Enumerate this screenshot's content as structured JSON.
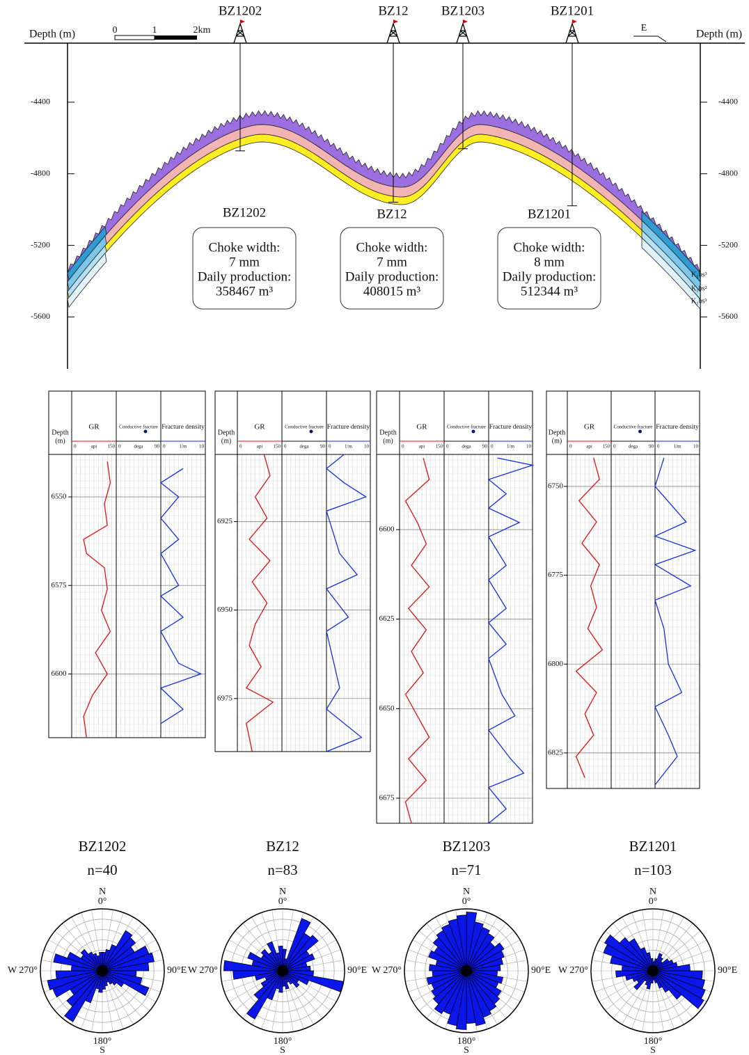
{
  "section": {
    "depth_label": "Depth (m)",
    "ylim": [
      -4070,
      -5890
    ],
    "yticks": [
      -4400,
      -4800,
      -5200,
      -5600
    ],
    "scale_bar": [
      "0",
      "1",
      "2km"
    ],
    "direction": "E",
    "wells": [
      {
        "name": "BZ1202",
        "bottom_depth": -4672
      },
      {
        "name": "BZ12",
        "bottom_depth": -4959
      },
      {
        "name": "BZ1203",
        "bottom_depth": -4660
      },
      {
        "name": "BZ1201",
        "bottom_depth": -4979
      }
    ],
    "boxes": [
      {
        "well": "BZ1202",
        "lines": [
          "Choke width:",
          "7 mm",
          "Daily production:",
          "358467 m³"
        ]
      },
      {
        "well": "BZ12",
        "lines": [
          "Choke width:",
          "7 mm",
          "Daily production:",
          "408015 m³"
        ]
      },
      {
        "well": "BZ1201",
        "lines": [
          "Choke width:",
          "8 mm",
          "Daily production:",
          "512344 m³"
        ]
      }
    ],
    "strata": [
      "K₁bs³",
      "K₁bs²",
      "K₁bs¹"
    ]
  },
  "log_header": {
    "depth": [
      "Depth",
      "(m)"
    ],
    "gr": {
      "label": "GR",
      "min": 0,
      "unit": "api",
      "max": 150
    },
    "dip": {
      "label": "Conductive fracture",
      "min": 0,
      "unit": "dega",
      "max": 90
    },
    "fd": {
      "label": "Fracture density",
      "min": 0,
      "unit": "1/m",
      "max": 10
    }
  },
  "logs": [
    {
      "ylim": [
        6538,
        6618
      ],
      "yticks": [
        6550,
        6575,
        6600
      ],
      "gr": {
        "depth": [
          6540,
          6546,
          6552,
          6558,
          6562,
          6566,
          6570,
          6576,
          6582,
          6588,
          6594,
          6600,
          6606,
          6612,
          6618
        ],
        "values": [
          120,
          130,
          110,
          120,
          40,
          50,
          110,
          120,
          100,
          130,
          80,
          120,
          70,
          40,
          50
        ]
      },
      "fd": {
        "depth": [
          6542,
          6546,
          6550,
          6556,
          6562,
          6566,
          6575,
          6578,
          6584,
          6588,
          6597,
          6600,
          6604,
          6610,
          6614
        ],
        "values": [
          5,
          0,
          4,
          0,
          4,
          0,
          4,
          0,
          5,
          0,
          4,
          9,
          0,
          5,
          0
        ]
      }
    },
    {
      "ylim": [
        6906,
        6990
      ],
      "yticks": [
        6925,
        6950,
        6975
      ],
      "gr": {
        "depth": [
          6906,
          6912,
          6918,
          6924,
          6930,
          6936,
          6942,
          6948,
          6954,
          6960,
          6966,
          6972,
          6976,
          6982,
          6990
        ],
        "values": [
          90,
          110,
          60,
          100,
          40,
          110,
          50,
          100,
          60,
          40,
          80,
          30,
          120,
          30,
          50
        ]
      },
      "fd": {
        "depth": [
          6906,
          6910,
          6914,
          6918,
          6922,
          6934,
          6940,
          6944,
          6952,
          6956,
          6972,
          6978,
          6982,
          6986,
          6990
        ],
        "values": [
          4,
          0,
          4,
          9,
          0,
          3,
          7,
          0,
          5,
          0,
          3,
          0,
          4,
          8,
          0
        ]
      }
    },
    {
      "ylim": [
        6579,
        6682
      ],
      "yticks": [
        6600,
        6625,
        6650,
        6675
      ],
      "gr": {
        "depth": [
          6580,
          6586,
          6592,
          6598,
          6604,
          6610,
          6616,
          6622,
          6628,
          6634,
          6640,
          6646,
          6652,
          6658,
          6664,
          6670,
          6676,
          6682
        ],
        "values": [
          80,
          100,
          20,
          60,
          90,
          40,
          100,
          30,
          90,
          40,
          80,
          20,
          60,
          100,
          30,
          90,
          20,
          40
        ]
      },
      "fd": {
        "depth": [
          6580,
          6582,
          6586,
          6590,
          6594,
          6598,
          6602,
          6610,
          6614,
          6622,
          6626,
          6632,
          6636,
          6646,
          6652,
          6656,
          6664,
          6668,
          6672,
          6678,
          6682
        ],
        "values": [
          2,
          10,
          0,
          4,
          0,
          7,
          0,
          4,
          0,
          4,
          0,
          4,
          0,
          3,
          6,
          0,
          5,
          8,
          0,
          4,
          0
        ]
      }
    },
    {
      "ylim": [
        6741,
        6835
      ],
      "yticks": [
        6750,
        6775,
        6800,
        6825
      ],
      "gr": {
        "depth": [
          6742,
          6748,
          6754,
          6760,
          6766,
          6772,
          6778,
          6784,
          6790,
          6796,
          6802,
          6808,
          6814,
          6820,
          6826,
          6832
        ],
        "values": [
          90,
          110,
          40,
          100,
          50,
          110,
          80,
          100,
          70,
          120,
          30,
          100,
          60,
          90,
          30,
          60
        ]
      },
      "fd": {
        "depth": [
          6742,
          6750,
          6760,
          6764,
          6768,
          6772,
          6778,
          6782,
          6790,
          6800,
          6808,
          6812,
          6820,
          6826,
          6834
        ],
        "values": [
          2,
          0,
          7,
          0,
          9,
          0,
          8,
          0,
          2,
          3,
          6,
          0,
          3,
          5,
          0
        ]
      }
    }
  ],
  "rose_labels": {
    "north": "N",
    "zero": "0°",
    "d180": "180°",
    "south": "S",
    "west": "W 270°",
    "east": "90°E"
  },
  "roses": [
    {
      "title": "BZ1202",
      "n": "n=40",
      "rlim": [
        0,
        1
      ],
      "lengths": [
        0.3,
        0.35,
        0.45,
        0.75,
        0.7,
        0.6,
        0.8,
        0.85,
        0.75,
        0.55,
        0.65,
        0.8,
        0.4,
        0.3,
        0.25,
        0.2,
        0.25,
        0.3,
        0.35,
        0.3,
        0.55,
        0.95,
        0.75,
        0.6,
        0.85,
        0.9,
        0.75,
        0.5,
        0.8,
        0.6,
        0.4,
        0.45,
        0.35,
        0.3,
        0.25,
        0.3
      ]
    },
    {
      "title": "BZ12",
      "n": "n=83",
      "rlim": [
        0,
        1
      ],
      "lengths": [
        0.35,
        0.2,
        0.9,
        0.7,
        0.75,
        0.5,
        0.55,
        0.4,
        0.45,
        0.5,
        1.0,
        0.45,
        0.3,
        0.35,
        0.25,
        0.2,
        0.3,
        0.25,
        0.35,
        0.3,
        0.5,
        0.9,
        0.6,
        0.4,
        0.3,
        0.45,
        0.8,
        0.95,
        0.5,
        0.6,
        0.4,
        0.45,
        0.35,
        0.5,
        0.3,
        0.4
      ]
    },
    {
      "title": "BZ1203",
      "n": "n=71",
      "rlim": [
        0,
        1
      ],
      "lengths": [
        0.95,
        0.8,
        0.75,
        0.7,
        0.6,
        0.7,
        0.65,
        0.6,
        0.55,
        0.5,
        0.6,
        0.55,
        0.65,
        0.7,
        0.75,
        0.8,
        0.9,
        0.85,
        0.95,
        0.9,
        0.75,
        0.8,
        0.7,
        0.65,
        0.6,
        0.65,
        0.55,
        0.6,
        0.5,
        0.65,
        0.6,
        0.7,
        0.75,
        0.8,
        0.85,
        0.9
      ]
    },
    {
      "title": "BZ1201",
      "n": "n=103",
      "rlim": [
        0,
        1
      ],
      "lengths": [
        0.15,
        0.2,
        0.3,
        0.25,
        0.2,
        0.3,
        0.35,
        0.4,
        0.6,
        0.8,
        0.85,
        0.9,
        0.95,
        0.6,
        0.4,
        0.3,
        0.2,
        0.15,
        0.2,
        0.3,
        0.25,
        0.2,
        0.4,
        0.3,
        0.35,
        0.45,
        0.6,
        0.5,
        0.7,
        0.85,
        0.9,
        0.7,
        0.6,
        0.4,
        0.3,
        0.2
      ]
    }
  ]
}
